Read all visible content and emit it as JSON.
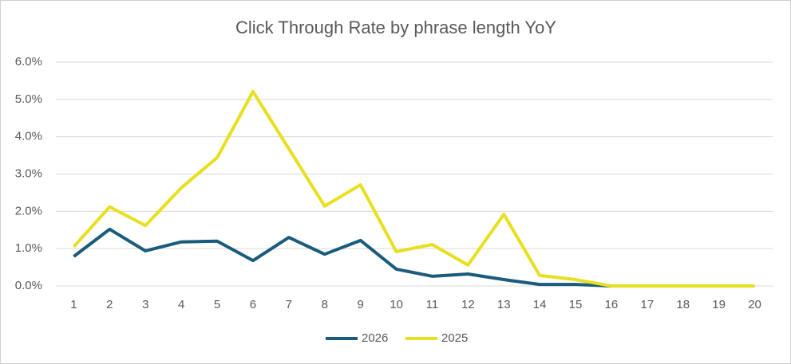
{
  "chart_data": {
    "type": "line",
    "title": "Click Through Rate by phrase length YoY",
    "categories": [
      1,
      2,
      3,
      4,
      5,
      6,
      7,
      8,
      9,
      10,
      11,
      12,
      13,
      14,
      15,
      16,
      17,
      18,
      19,
      20
    ],
    "series": [
      {
        "name": "2026",
        "color": "#1b5b7b",
        "values": [
          0.79,
          1.52,
          0.94,
          1.18,
          1.2,
          0.68,
          1.3,
          0.85,
          1.22,
          0.45,
          0.26,
          0.32,
          0.17,
          0.04,
          0.04,
          0,
          0,
          0,
          0,
          0
        ]
      },
      {
        "name": "2025",
        "color": "#e8df1f",
        "values": [
          1.05,
          2.12,
          1.62,
          2.63,
          3.44,
          5.21,
          3.68,
          2.14,
          2.71,
          0.92,
          1.11,
          0.56,
          1.92,
          0.28,
          0.17,
          0,
          0,
          0,
          0,
          0
        ]
      }
    ],
    "ylim": [
      0,
      6
    ],
    "yticks": [
      {
        "value": 0,
        "label": "0.0%"
      },
      {
        "value": 1,
        "label": "1.0%"
      },
      {
        "value": 2,
        "label": "2.0%"
      },
      {
        "value": 3,
        "label": "3.0%"
      },
      {
        "value": 4,
        "label": "4.0%"
      },
      {
        "value": 5,
        "label": "5.0%"
      },
      {
        "value": 6,
        "label": "6.0%"
      }
    ],
    "grid": true,
    "legend": "bottom"
  }
}
